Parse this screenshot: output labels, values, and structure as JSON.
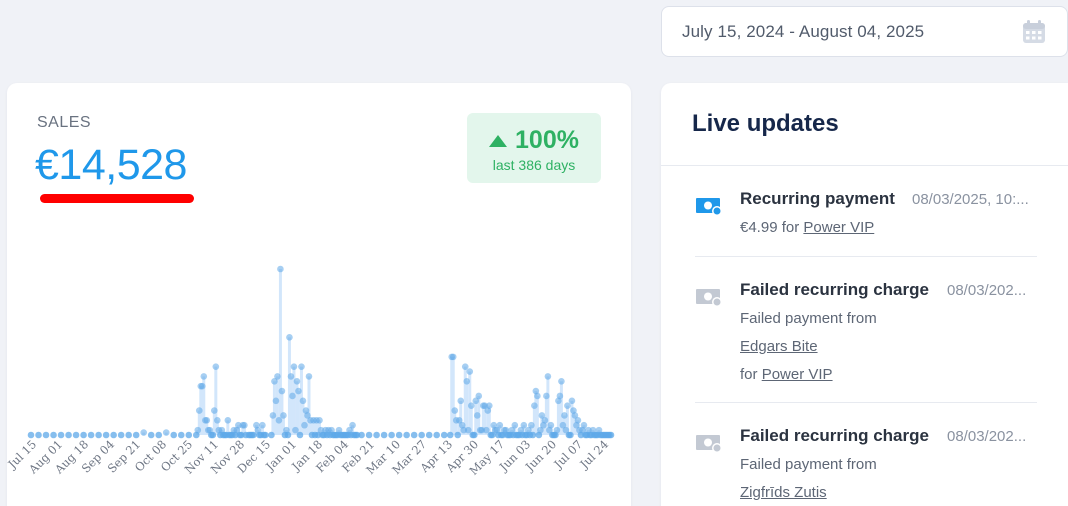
{
  "date_range": {
    "text": "July 15, 2024 - August 04, 2025"
  },
  "sales": {
    "label": "SALES",
    "value": "€14,528",
    "change_pct": "100%",
    "change_period": "last 386 days"
  },
  "chart_data": {
    "type": "scatter",
    "x_ticks": [
      "Jul 15",
      "Aug 01",
      "Aug 18",
      "Sep 04",
      "Sep 21",
      "Oct 08",
      "Oct 25",
      "Nov 11",
      "Nov 28",
      "Dec 15",
      "Jan 01",
      "Jan 18",
      "Feb 04",
      "Feb 21",
      "Mar 10",
      "Mar 27",
      "Apr 13",
      "Apr 30",
      "May 17",
      "Jun 03",
      "Jun 20",
      "Jul 07",
      "Jul 24"
    ],
    "series": [
      {
        "points": [
          [
            0,
            0
          ],
          [
            5,
            0
          ],
          [
            10,
            0
          ],
          [
            15,
            0
          ],
          [
            20,
            0
          ],
          [
            25,
            0
          ],
          [
            30,
            0
          ],
          [
            35,
            0
          ],
          [
            40,
            0
          ],
          [
            45,
            0
          ],
          [
            50,
            0
          ],
          [
            55,
            0
          ],
          [
            60,
            0
          ],
          [
            65,
            0
          ],
          [
            70,
            0
          ],
          [
            75,
            0.5
          ],
          [
            80,
            0
          ],
          [
            85,
            0
          ],
          [
            90,
            0.5
          ],
          [
            95,
            0
          ],
          [
            100,
            0
          ],
          [
            105,
            0
          ],
          [
            110,
            0
          ],
          [
            111,
            1
          ],
          [
            112,
            5
          ],
          [
            113,
            10
          ],
          [
            114,
            10
          ],
          [
            115,
            12
          ],
          [
            116,
            3
          ],
          [
            117,
            3
          ],
          [
            118,
            1
          ],
          [
            119,
            1
          ],
          [
            120,
            0
          ],
          [
            121,
            0
          ],
          [
            122,
            5
          ],
          [
            123,
            14
          ],
          [
            124,
            3
          ],
          [
            125,
            1
          ],
          [
            126,
            0
          ],
          [
            127,
            1
          ],
          [
            128,
            0
          ],
          [
            129,
            0
          ],
          [
            130,
            0
          ],
          [
            131,
            3
          ],
          [
            132,
            0
          ],
          [
            133,
            0
          ],
          [
            134,
            0
          ],
          [
            135,
            1
          ],
          [
            136,
            0
          ],
          [
            137,
            1
          ],
          [
            138,
            2
          ],
          [
            139,
            0
          ],
          [
            140,
            0
          ],
          [
            141,
            2
          ],
          [
            142,
            2
          ],
          [
            143,
            0
          ],
          [
            145,
            0
          ],
          [
            146,
            0
          ],
          [
            147,
            0
          ],
          [
            148,
            0
          ],
          [
            150,
            2
          ],
          [
            151,
            1
          ],
          [
            152,
            0
          ],
          [
            153,
            0
          ],
          [
            154,
            2
          ],
          [
            155,
            0
          ],
          [
            156,
            0
          ],
          [
            160,
            0
          ],
          [
            161,
            4
          ],
          [
            162,
            11
          ],
          [
            163,
            7
          ],
          [
            164,
            12
          ],
          [
            165,
            3
          ],
          [
            166,
            34
          ],
          [
            167,
            9
          ],
          [
            168,
            4
          ],
          [
            169,
            0
          ],
          [
            170,
            1
          ],
          [
            171,
            0
          ],
          [
            172,
            20
          ],
          [
            173,
            12
          ],
          [
            174,
            8
          ],
          [
            175,
            14
          ],
          [
            176,
            1
          ],
          [
            177,
            11
          ],
          [
            178,
            9
          ],
          [
            179,
            0
          ],
          [
            180,
            14
          ],
          [
            181,
            7
          ],
          [
            182,
            2
          ],
          [
            183,
            5
          ],
          [
            184,
            4
          ],
          [
            185,
            12
          ],
          [
            186,
            3
          ],
          [
            187,
            0
          ],
          [
            188,
            3
          ],
          [
            189,
            0
          ],
          [
            190,
            3
          ],
          [
            191,
            0
          ],
          [
            192,
            3
          ],
          [
            193,
            1
          ],
          [
            194,
            0
          ],
          [
            195,
            0
          ],
          [
            196,
            1
          ],
          [
            197,
            0
          ],
          [
            198,
            1
          ],
          [
            199,
            0
          ],
          [
            200,
            1
          ],
          [
            201,
            0
          ],
          [
            202,
            0
          ],
          [
            203,
            0
          ],
          [
            204,
            0
          ],
          [
            205,
            1
          ],
          [
            206,
            0
          ],
          [
            207,
            0
          ],
          [
            208,
            0
          ],
          [
            209,
            0
          ],
          [
            210,
            0
          ],
          [
            211,
            0
          ],
          [
            212,
            1
          ],
          [
            213,
            0
          ],
          [
            214,
            2
          ],
          [
            215,
            0
          ],
          [
            216,
            0
          ],
          [
            217,
            0
          ],
          [
            220,
            0
          ],
          [
            225,
            0
          ],
          [
            230,
            0
          ],
          [
            235,
            0
          ],
          [
            240,
            0
          ],
          [
            245,
            0
          ],
          [
            250,
            0
          ],
          [
            255,
            0
          ],
          [
            260,
            0
          ],
          [
            265,
            0
          ],
          [
            270,
            0
          ],
          [
            275,
            0
          ],
          [
            279,
            0
          ],
          [
            280,
            16
          ],
          [
            281,
            16
          ],
          [
            282,
            5
          ],
          [
            283,
            3
          ],
          [
            284,
            0
          ],
          [
            285,
            3
          ],
          [
            286,
            7
          ],
          [
            287,
            2
          ],
          [
            288,
            1
          ],
          [
            289,
            14
          ],
          [
            290,
            11
          ],
          [
            291,
            1
          ],
          [
            292,
            13
          ],
          [
            293,
            6
          ],
          [
            294,
            0
          ],
          [
            295,
            0
          ],
          [
            296,
            7
          ],
          [
            297,
            4
          ],
          [
            298,
            8
          ],
          [
            299,
            1
          ],
          [
            300,
            1
          ],
          [
            301,
            6
          ],
          [
            302,
            6
          ],
          [
            303,
            1
          ],
          [
            304,
            5
          ],
          [
            305,
            6
          ],
          [
            306,
            0
          ],
          [
            307,
            0
          ],
          [
            308,
            2
          ],
          [
            309,
            1
          ],
          [
            310,
            1
          ],
          [
            311,
            0
          ],
          [
            312,
            2
          ],
          [
            313,
            0
          ],
          [
            314,
            0
          ],
          [
            315,
            1
          ],
          [
            316,
            1
          ],
          [
            317,
            0
          ],
          [
            318,
            0
          ],
          [
            319,
            0
          ],
          [
            320,
            1
          ],
          [
            321,
            0
          ],
          [
            322,
            2
          ],
          [
            323,
            0
          ],
          [
            324,
            0
          ],
          [
            325,
            0
          ],
          [
            326,
            1
          ],
          [
            327,
            0
          ],
          [
            328,
            2
          ],
          [
            329,
            0
          ],
          [
            330,
            0
          ],
          [
            331,
            1
          ],
          [
            332,
            0
          ],
          [
            333,
            2
          ],
          [
            334,
            0
          ],
          [
            335,
            6
          ],
          [
            336,
            9
          ],
          [
            337,
            8
          ],
          [
            338,
            0
          ],
          [
            339,
            1
          ],
          [
            340,
            4
          ],
          [
            341,
            2
          ],
          [
            342,
            3
          ],
          [
            343,
            8
          ],
          [
            344,
            12
          ],
          [
            345,
            1
          ],
          [
            346,
            2
          ],
          [
            347,
            0
          ],
          [
            348,
            0
          ],
          [
            349,
            0
          ],
          [
            350,
            1
          ],
          [
            351,
            7
          ],
          [
            352,
            8
          ],
          [
            353,
            11
          ],
          [
            354,
            2
          ],
          [
            355,
            4
          ],
          [
            356,
            1
          ],
          [
            357,
            6
          ],
          [
            358,
            0
          ],
          [
            359,
            0
          ],
          [
            360,
            7
          ],
          [
            361,
            5
          ],
          [
            362,
            4
          ],
          [
            363,
            2
          ],
          [
            364,
            3
          ],
          [
            365,
            1
          ],
          [
            366,
            0
          ],
          [
            367,
            1
          ],
          [
            368,
            2
          ],
          [
            369,
            0
          ],
          [
            370,
            0
          ],
          [
            371,
            1
          ],
          [
            372,
            0
          ],
          [
            373,
            0
          ],
          [
            374,
            1
          ],
          [
            375,
            0
          ],
          [
            376,
            0
          ],
          [
            377,
            0
          ],
          [
            378,
            1
          ],
          [
            379,
            0
          ],
          [
            380,
            0
          ],
          [
            381,
            0
          ],
          [
            382,
            0
          ],
          [
            383,
            0
          ],
          [
            384,
            0
          ],
          [
            385,
            0
          ],
          [
            386,
            0
          ]
        ]
      }
    ],
    "xlim": [
      0,
      386
    ],
    "ylim": [
      0,
      34
    ],
    "grid": false
  },
  "live": {
    "title": "Live updates",
    "items": [
      {
        "title": "Recurring payment",
        "time": "08/03/2025, 10:...",
        "lines": [
          {
            "pre": "€4.99 for ",
            "link": "Power VIP"
          }
        ],
        "icon": "payment-icon"
      },
      {
        "title": "Failed recurring charge",
        "time": "08/03/202...",
        "lines": [
          {
            "pre": "Failed payment from",
            "link": ""
          },
          {
            "pre": "",
            "link": "Edgars Bite"
          },
          {
            "pre": "for ",
            "link": "Power VIP"
          }
        ],
        "icon": "failed-payment-icon"
      },
      {
        "title": "Failed recurring charge",
        "time": "08/03/202...",
        "lines": [
          {
            "pre": "Failed payment from",
            "link": ""
          },
          {
            "pre": "",
            "link": "Zigfrīds Zutis"
          }
        ],
        "icon": "failed-payment-icon"
      }
    ]
  },
  "colors": {
    "accent": "#1f98ea",
    "positive": "#2eb163",
    "underline": "#ff0000",
    "point": "#5ea8e8"
  }
}
